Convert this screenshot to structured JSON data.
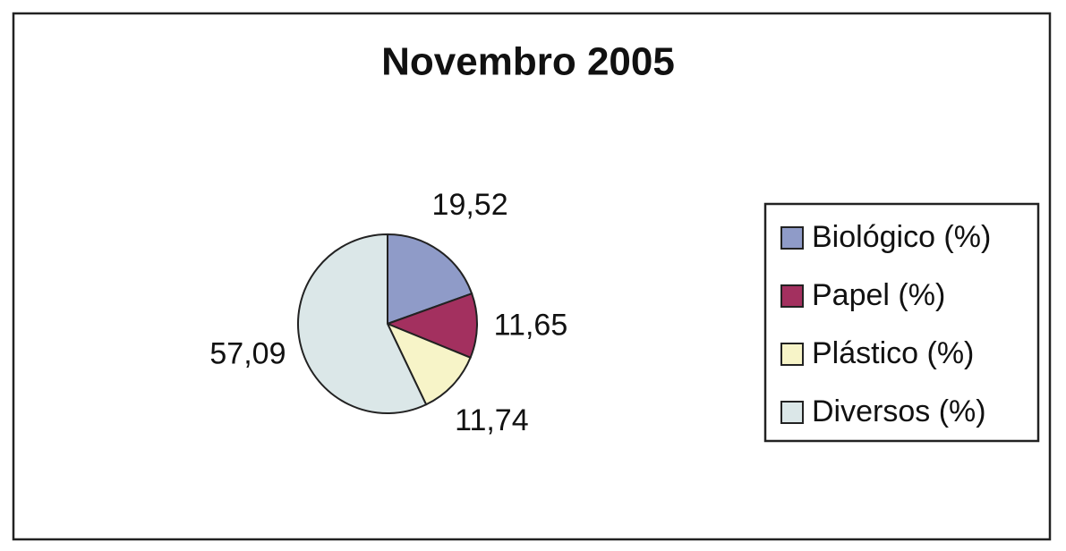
{
  "chart_data": {
    "type": "pie",
    "title": "Novembro 2005",
    "categories": [
      "Biológico (%)",
      "Papel (%)",
      "Plástico (%)",
      "Diversos (%)"
    ],
    "values": [
      19.52,
      11.65,
      11.74,
      57.09
    ],
    "value_labels": [
      "19,52",
      "11,65",
      "11,74",
      "57,09"
    ],
    "colors": [
      "#8f9bc8",
      "#a3305f",
      "#f7f4c8",
      "#dbe7e8"
    ],
    "legend": "right"
  }
}
